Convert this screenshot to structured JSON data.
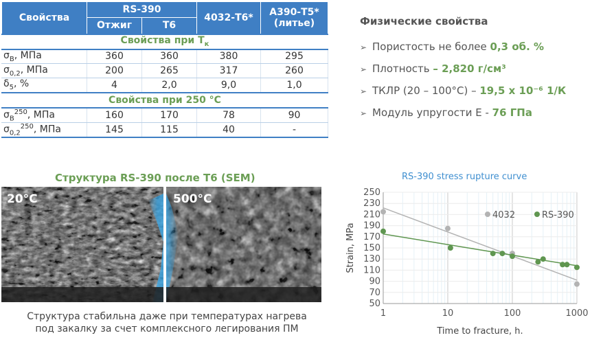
{
  "table": {
    "header": {
      "col_props": "Свойства",
      "col_rs390": "RS-390",
      "sub_annealed": "Отжиг",
      "sub_t6": "Т6",
      "col_4032": "4032-Т6*",
      "col_a390_line1": "А390-Т5*",
      "col_a390_line2": "(литье)"
    },
    "section1": {
      "text": "Свойства при Т",
      "sub": "к"
    },
    "section2": {
      "text": "Свойства при 250 °С"
    },
    "rows1": [
      {
        "sym": "σ",
        "sub": "B",
        "unit": ", МПа",
        "values": [
          "360",
          "360",
          "380",
          "295"
        ]
      },
      {
        "sym": "σ",
        "sub": "0,2",
        "unit": ", МПа",
        "values": [
          "200",
          "265",
          "317",
          "260"
        ]
      },
      {
        "sym": "δ",
        "sub": "5",
        "unit": ", %",
        "values": [
          "4",
          "2,0",
          "9,0",
          "1,0"
        ]
      }
    ],
    "rows2": [
      {
        "sym": "σ",
        "sub": "B",
        "sup": "250",
        "unit": ", МПа",
        "values": [
          "160",
          "170",
          "78",
          "90"
        ]
      },
      {
        "sym": "σ",
        "sub": "0,2",
        "sup": "250",
        "unit": ", МПа",
        "values": [
          "145",
          "115",
          "40",
          "-"
        ]
      }
    ]
  },
  "physical": {
    "title": "Физические свойства",
    "items": [
      {
        "label": "Пористость не более ",
        "value": "0,3 об. %"
      },
      {
        "label": "Плотность ",
        "value": "– 2,820 г/см³"
      },
      {
        "label": "ТКЛР (20 – 100°С) – ",
        "value": "19,5 x 10⁻⁶ 1/К"
      },
      {
        "label": "Модуль упругости Е - ",
        "value": "76 ГПа"
      }
    ]
  },
  "sem": {
    "title": "Структура RS-390 после Т6 (SEM)",
    "label_left": "20°С",
    "label_right": "500°С",
    "caption_line1": "Структура стабильна даже при температурах нагрева",
    "caption_line2": "под закалку за счет комплексного легирования ПМ"
  },
  "chart_data": {
    "type": "scatter",
    "title": "RS-390 stress rupture curve",
    "xlabel": "Time to fracture, h.",
    "ylabel": "Strain, MPa",
    "xscale": "log",
    "xlim": [
      1,
      1000
    ],
    "ylim": [
      50,
      250
    ],
    "xticks": [
      1,
      10,
      100,
      1000
    ],
    "xtick_labels": [
      "1",
      "10",
      "100",
      "1000"
    ],
    "yticks": [
      50,
      70,
      90,
      110,
      130,
      150,
      170,
      190,
      210,
      230,
      250
    ],
    "legend_position": "top-right",
    "series": [
      {
        "name": "4032",
        "color": "#b3b3b3",
        "points": [
          [
            1,
            215
          ],
          [
            10,
            185
          ],
          [
            100,
            140
          ],
          [
            1000,
            85
          ]
        ],
        "trend": [
          [
            1,
            222
          ],
          [
            1000,
            92
          ]
        ]
      },
      {
        "name": "RS-390",
        "color": "#5f9650",
        "points": [
          [
            1,
            180
          ],
          [
            11,
            150
          ],
          [
            50,
            140
          ],
          [
            70,
            140
          ],
          [
            100,
            135
          ],
          [
            250,
            125
          ],
          [
            300,
            130
          ],
          [
            600,
            120
          ],
          [
            700,
            120
          ],
          [
            1000,
            115
          ]
        ],
        "trend": [
          [
            1,
            175
          ],
          [
            1000,
            118
          ]
        ]
      }
    ]
  }
}
